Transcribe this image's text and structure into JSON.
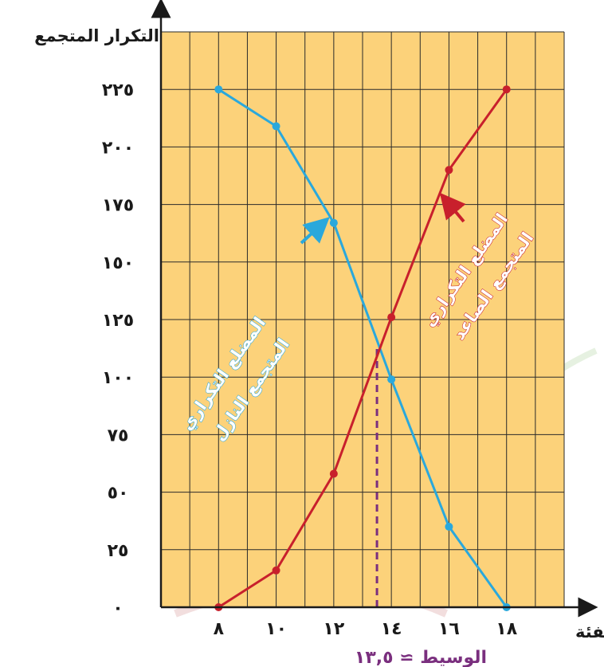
{
  "chart_data": {
    "type": "line",
    "title": "",
    "ylabel": "التكرار المتجمع",
    "xlabel": "الفئة",
    "x_ticks": [
      {
        "value": 8,
        "label": "٨"
      },
      {
        "value": 10,
        "label": "١٠"
      },
      {
        "value": 12,
        "label": "١٢"
      },
      {
        "value": 14,
        "label": "١٤"
      },
      {
        "value": 16,
        "label": "١٦"
      },
      {
        "value": 18,
        "label": "١٨"
      }
    ],
    "y_ticks": [
      {
        "value": 0,
        "label": "٠"
      },
      {
        "value": 25,
        "label": "٢٥"
      },
      {
        "value": 50,
        "label": "٥٠"
      },
      {
        "value": 75,
        "label": "٧٥"
      },
      {
        "value": 100,
        "label": "١٠٠"
      },
      {
        "value": 125,
        "label": "١٢٥"
      },
      {
        "value": 150,
        "label": "١٥٠"
      },
      {
        "value": 175,
        "label": "١٧٥"
      },
      {
        "value": 200,
        "label": "٢٠٠"
      },
      {
        "value": 225,
        "label": "٢٢٥"
      }
    ],
    "xlim": [
      6,
      20
    ],
    "ylim": [
      0,
      250
    ],
    "grid": true,
    "series": [
      {
        "key": "descending",
        "color": "#2aa8dc",
        "x": [
          8,
          10,
          12,
          14,
          16,
          18
        ],
        "y": [
          225,
          209,
          167,
          99,
          35,
          0
        ]
      },
      {
        "key": "ascending",
        "color": "#c8202c",
        "x": [
          8,
          10,
          12,
          14,
          16,
          18
        ],
        "y": [
          0,
          16,
          58,
          126,
          190,
          225
        ]
      }
    ],
    "annotations": {
      "descending_lines": [
        "المضلع التكراري",
        "المتجمع النازل"
      ],
      "ascending_lines": [
        "المضلع التكراري",
        "المتجمع الصاعد"
      ],
      "median_label": "الوسيط ≃ ١٣,٥",
      "median_x": 13.5
    },
    "colors": {
      "grid_background": "#fcd27a",
      "grid_lines": "#2a2a2a",
      "median_line": "#7a2f7e"
    }
  }
}
